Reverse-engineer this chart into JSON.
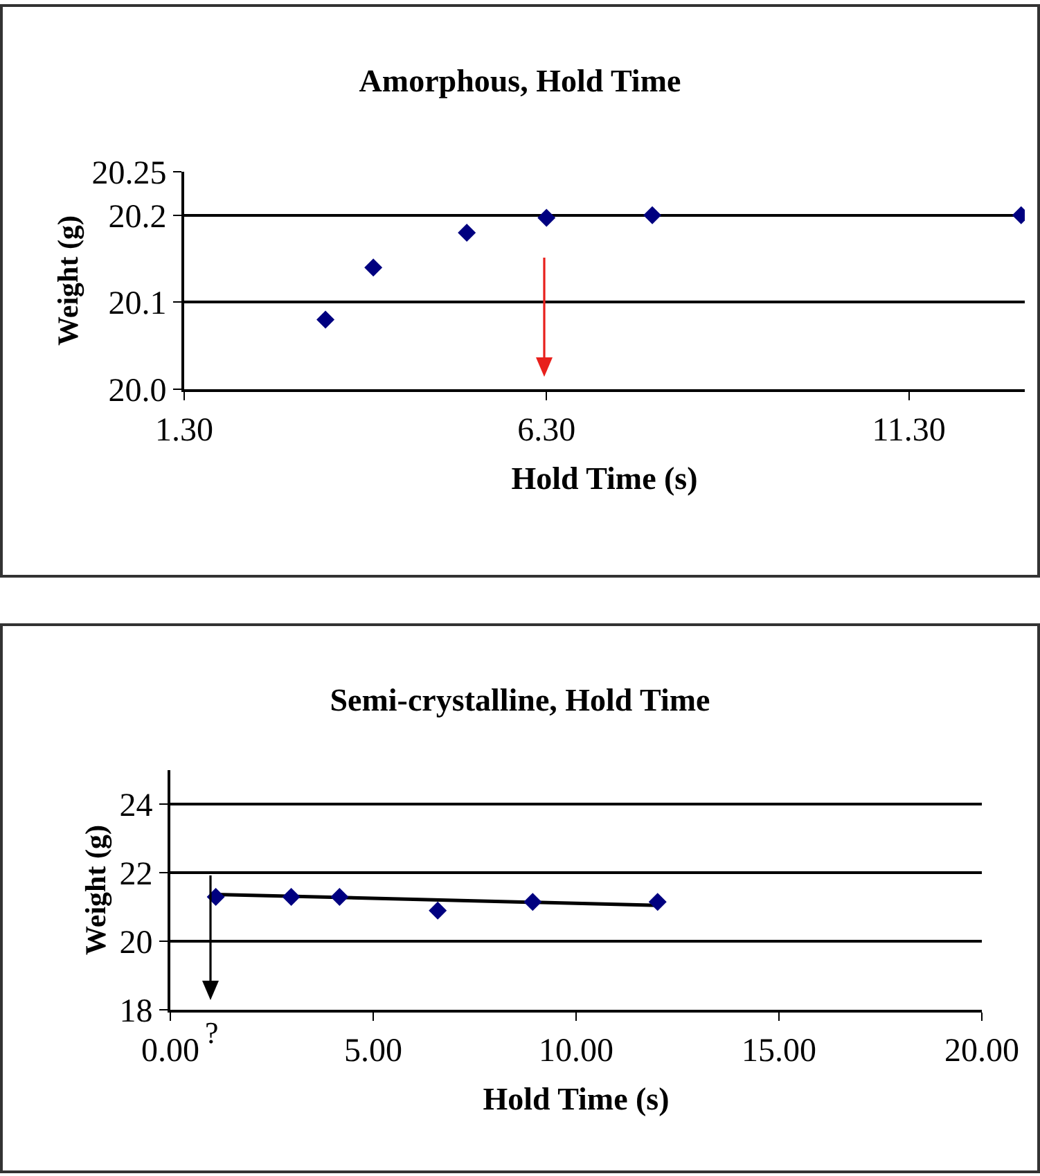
{
  "chart_data": [
    {
      "type": "scatter",
      "title": "Amorphous, Hold Time",
      "xlabel": "Hold Time (s)",
      "ylabel": "Weight (g)",
      "x": [
        3.25,
        3.91,
        5.2,
        6.3,
        7.76,
        12.85
      ],
      "series": [
        {
          "color": "#000080",
          "marker": "diamond",
          "values": [
            20.08,
            20.14,
            20.18,
            20.197,
            20.2,
            20.2
          ]
        }
      ],
      "xlim": [
        1.3,
        12.9
      ],
      "xticks": [
        {
          "value": 1.3,
          "label": "1.30"
        },
        {
          "value": 6.3,
          "label": "6.30"
        },
        {
          "value": 11.3,
          "label": "11.30"
        }
      ],
      "ylim": [
        20.0,
        20.25
      ],
      "yticks": [
        {
          "value": 20.0,
          "label": "20.0"
        },
        {
          "value": 20.1,
          "label": "20.1"
        },
        {
          "value": 20.2,
          "label": "20.2"
        },
        20.25
      ],
      "grid": "y"
    },
    {
      "type": "scatter",
      "title": "Semi-crystalline, Hold Time",
      "xlabel": "Hold Time (s)",
      "ylabel": "Weight (g)",
      "x": [
        1.12,
        2.98,
        4.17,
        6.59,
        8.93,
        12.01
      ],
      "series": [
        {
          "color": "#000080",
          "marker": "diamond",
          "values": [
            21.3,
            21.3,
            21.3,
            20.9,
            21.15,
            21.15
          ]
        },
        {
          "type": "line",
          "color": "#000000",
          "x": [
            1.12,
            12.01
          ],
          "values": [
            21.37,
            21.05
          ]
        }
      ],
      "xlim": [
        0,
        20
      ],
      "xticks": [
        {
          "value": 0,
          "label": "0.00"
        },
        {
          "value": 5,
          "label": "5.00"
        },
        {
          "value": 10,
          "label": "10.00"
        },
        {
          "value": 15,
          "label": "15.00"
        },
        {
          "value": 20,
          "label": "20.00"
        }
      ],
      "ylim": [
        18,
        25
      ],
      "yticks": [
        18,
        20,
        22,
        24
      ],
      "annotations": [
        "?"
      ],
      "grid": "y"
    }
  ]
}
